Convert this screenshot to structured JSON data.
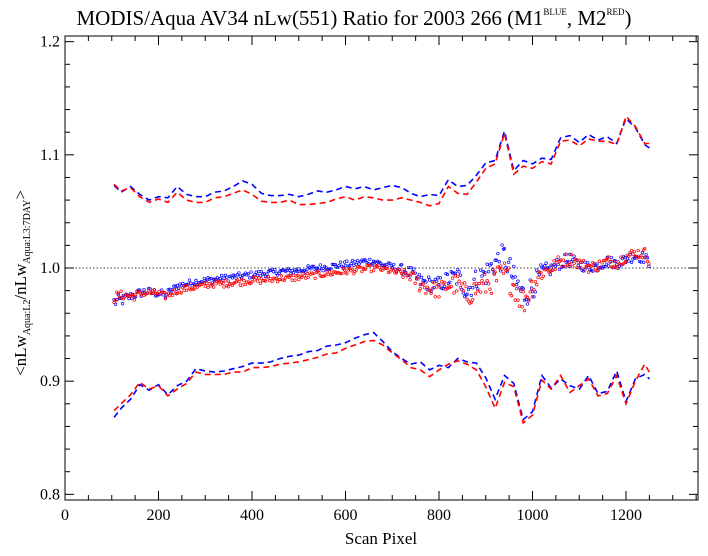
{
  "title": {
    "main": "MODIS/Aqua AV34 nLw(551) Ratio for 2003 266 (M1",
    "sup1": "BLUE",
    "mid": ", M2",
    "sup2": "RED",
    "end": ")"
  },
  "chart_data": {
    "type": "scatter",
    "xlabel": "Scan Pixel",
    "ylabel": {
      "p1": "<nLw",
      "s1": "Aqua:L2",
      "p2": "/nLw",
      "s2": "Aqua:L3:7DAY",
      "p3": ">"
    },
    "xlim": [
      0,
      1354
    ],
    "ylim": [
      0.795,
      1.205
    ],
    "x_ticks": [
      0,
      200,
      400,
      600,
      800,
      1000,
      1200
    ],
    "x_tick_labels": [
      "0",
      "200",
      "400",
      "600",
      "800",
      "1000",
      "1200"
    ],
    "y_ticks": [
      0.8,
      0.9,
      1.0,
      1.1,
      1.2
    ],
    "y_tick_labels": [
      "0.8",
      "0.9",
      "1.0",
      "1.1",
      "1.2"
    ],
    "reference_line": 1.0,
    "colors": {
      "m1": "#0000ff",
      "m2": "#ff0000"
    },
    "series": [
      {
        "kind": "upper-bound",
        "color": "#0000ff",
        "x": [
          105,
          120,
          140,
          160,
          180,
          200,
          220,
          240,
          260,
          280,
          300,
          320,
          340,
          360,
          380,
          400,
          420,
          440,
          460,
          480,
          500,
          520,
          540,
          560,
          580,
          600,
          620,
          640,
          660,
          680,
          700,
          720,
          740,
          760,
          780,
          800,
          820,
          840,
          860,
          880,
          900,
          920,
          940,
          960,
          980,
          1000,
          1020,
          1040,
          1060,
          1080,
          1100,
          1120,
          1140,
          1160,
          1180,
          1200,
          1220,
          1240,
          1250
        ],
        "y": [
          1.073,
          1.067,
          1.072,
          1.065,
          1.06,
          1.063,
          1.062,
          1.072,
          1.065,
          1.063,
          1.063,
          1.067,
          1.068,
          1.072,
          1.077,
          1.074,
          1.066,
          1.064,
          1.064,
          1.065,
          1.063,
          1.065,
          1.068,
          1.067,
          1.069,
          1.072,
          1.07,
          1.072,
          1.069,
          1.071,
          1.073,
          1.071,
          1.066,
          1.063,
          1.065,
          1.064,
          1.078,
          1.072,
          1.073,
          1.082,
          1.093,
          1.095,
          1.121,
          1.086,
          1.095,
          1.092,
          1.097,
          1.096,
          1.115,
          1.117,
          1.111,
          1.118,
          1.113,
          1.116,
          1.11,
          1.132,
          1.124,
          1.109,
          1.106
        ]
      },
      {
        "kind": "upper-bound",
        "color": "#ff0000",
        "x": [
          105,
          120,
          140,
          160,
          180,
          200,
          220,
          240,
          260,
          280,
          300,
          320,
          340,
          360,
          380,
          400,
          420,
          440,
          460,
          480,
          500,
          520,
          540,
          560,
          580,
          600,
          620,
          640,
          660,
          680,
          700,
          720,
          740,
          760,
          780,
          800,
          820,
          840,
          860,
          880,
          900,
          920,
          940,
          960,
          980,
          1000,
          1020,
          1040,
          1060,
          1080,
          1100,
          1120,
          1140,
          1160,
          1180,
          1200,
          1220,
          1240,
          1250
        ],
        "y": [
          1.074,
          1.068,
          1.071,
          1.063,
          1.058,
          1.061,
          1.058,
          1.067,
          1.06,
          1.058,
          1.058,
          1.062,
          1.063,
          1.066,
          1.069,
          1.065,
          1.059,
          1.058,
          1.058,
          1.06,
          1.056,
          1.056,
          1.057,
          1.058,
          1.061,
          1.063,
          1.06,
          1.063,
          1.062,
          1.06,
          1.06,
          1.062,
          1.06,
          1.058,
          1.055,
          1.057,
          1.072,
          1.066,
          1.065,
          1.076,
          1.088,
          1.092,
          1.119,
          1.083,
          1.09,
          1.088,
          1.094,
          1.092,
          1.112,
          1.113,
          1.108,
          1.114,
          1.112,
          1.112,
          1.109,
          1.134,
          1.125,
          1.11,
          1.11
        ]
      },
      {
        "kind": "lower-bound",
        "color": "#0000ff",
        "x": [
          105,
          120,
          140,
          160,
          180,
          200,
          220,
          240,
          260,
          280,
          300,
          320,
          340,
          360,
          380,
          400,
          420,
          440,
          460,
          480,
          500,
          520,
          540,
          560,
          580,
          600,
          620,
          640,
          660,
          680,
          700,
          720,
          740,
          760,
          780,
          800,
          820,
          840,
          860,
          880,
          900,
          920,
          940,
          960,
          980,
          1000,
          1020,
          1040,
          1060,
          1080,
          1100,
          1120,
          1140,
          1160,
          1180,
          1200,
          1220,
          1240,
          1250
        ],
        "y": [
          0.868,
          0.876,
          0.884,
          0.897,
          0.892,
          0.897,
          0.888,
          0.896,
          0.9,
          0.911,
          0.909,
          0.908,
          0.909,
          0.911,
          0.913,
          0.916,
          0.916,
          0.917,
          0.92,
          0.922,
          0.923,
          0.926,
          0.927,
          0.931,
          0.932,
          0.934,
          0.938,
          0.941,
          0.943,
          0.935,
          0.926,
          0.92,
          0.915,
          0.917,
          0.91,
          0.914,
          0.912,
          0.92,
          0.917,
          0.916,
          0.903,
          0.884,
          0.905,
          0.898,
          0.866,
          0.873,
          0.905,
          0.894,
          0.902,
          0.896,
          0.893,
          0.905,
          0.889,
          0.891,
          0.909,
          0.882,
          0.902,
          0.906,
          0.902
        ]
      },
      {
        "kind": "lower-bound",
        "color": "#ff0000",
        "x": [
          105,
          120,
          140,
          160,
          180,
          200,
          220,
          240,
          260,
          280,
          300,
          320,
          340,
          360,
          380,
          400,
          420,
          440,
          460,
          480,
          500,
          520,
          540,
          560,
          580,
          600,
          620,
          640,
          660,
          680,
          700,
          720,
          740,
          760,
          780,
          800,
          820,
          840,
          860,
          880,
          900,
          920,
          940,
          960,
          980,
          1000,
          1020,
          1040,
          1060,
          1080,
          1100,
          1120,
          1140,
          1160,
          1180,
          1200,
          1220,
          1240,
          1250
        ],
        "y": [
          0.874,
          0.88,
          0.888,
          0.899,
          0.893,
          0.896,
          0.887,
          0.893,
          0.898,
          0.908,
          0.906,
          0.906,
          0.906,
          0.908,
          0.908,
          0.912,
          0.912,
          0.913,
          0.915,
          0.916,
          0.917,
          0.919,
          0.921,
          0.924,
          0.925,
          0.929,
          0.932,
          0.935,
          0.936,
          0.932,
          0.925,
          0.919,
          0.912,
          0.91,
          0.904,
          0.91,
          0.915,
          0.918,
          0.915,
          0.91,
          0.895,
          0.876,
          0.899,
          0.895,
          0.863,
          0.87,
          0.901,
          0.893,
          0.905,
          0.89,
          0.896,
          0.902,
          0.887,
          0.889,
          0.905,
          0.88,
          0.9,
          0.915,
          0.908
        ]
      },
      {
        "kind": "ratio-points",
        "color": "#0000ff",
        "x": [
          105,
          125,
          145,
          170,
          195,
          215,
          240,
          260,
          280,
          300,
          320,
          340,
          360,
          380,
          400,
          420,
          440,
          460,
          480,
          500,
          520,
          540,
          560,
          580,
          600,
          620,
          640,
          660,
          680,
          700,
          720,
          740,
          760,
          780,
          800,
          820,
          840,
          860,
          880,
          900,
          920,
          940,
          960,
          980,
          1000,
          1020,
          1040,
          1060,
          1080,
          1100,
          1120,
          1140,
          1160,
          1180,
          1200,
          1220,
          1240,
          1250
        ],
        "y": [
          0.97,
          0.972,
          0.976,
          0.979,
          0.978,
          0.976,
          0.984,
          0.986,
          0.988,
          0.989,
          0.99,
          0.991,
          0.992,
          0.993,
          0.994,
          0.995,
          0.996,
          0.997,
          0.997,
          0.998,
          0.999,
          1.0,
          1.001,
          1.002,
          1.003,
          1.004,
          1.006,
          1.006,
          1.003,
          1.001,
          0.999,
          0.995,
          0.988,
          0.986,
          0.985,
          0.99,
          0.992,
          0.98,
          0.99,
          0.995,
          1.005,
          1.01,
          0.99,
          0.976,
          0.983,
          0.996,
          0.999,
          1.005,
          1.007,
          1.003,
          1.001,
          1.002,
          1.006,
          1.004,
          1.008,
          1.011,
          1.009,
          1.004
        ],
        "spread": [
          0.006,
          0.005,
          0.004,
          0.004,
          0.004,
          0.004,
          0.003,
          0.003,
          0.003,
          0.003,
          0.003,
          0.003,
          0.003,
          0.003,
          0.003,
          0.003,
          0.003,
          0.003,
          0.003,
          0.003,
          0.003,
          0.003,
          0.003,
          0.003,
          0.003,
          0.003,
          0.003,
          0.003,
          0.003,
          0.003,
          0.004,
          0.006,
          0.007,
          0.007,
          0.007,
          0.008,
          0.01,
          0.01,
          0.01,
          0.011,
          0.011,
          0.012,
          0.012,
          0.013,
          0.011,
          0.008,
          0.006,
          0.006,
          0.006,
          0.005,
          0.005,
          0.005,
          0.005,
          0.005,
          0.005,
          0.005,
          0.005,
          0.005
        ]
      },
      {
        "kind": "ratio-points",
        "color": "#ff0000",
        "x": [
          105,
          125,
          145,
          170,
          195,
          215,
          240,
          260,
          280,
          300,
          320,
          340,
          360,
          380,
          400,
          420,
          440,
          460,
          480,
          500,
          520,
          540,
          560,
          580,
          600,
          620,
          640,
          660,
          680,
          700,
          720,
          740,
          760,
          780,
          800,
          820,
          840,
          860,
          880,
          900,
          920,
          940,
          960,
          980,
          1000,
          1020,
          1040,
          1060,
          1080,
          1100,
          1120,
          1140,
          1160,
          1180,
          1200,
          1220,
          1240,
          1250
        ],
        "y": [
          0.974,
          0.976,
          0.975,
          0.978,
          0.978,
          0.975,
          0.98,
          0.982,
          0.983,
          0.985,
          0.986,
          0.986,
          0.987,
          0.988,
          0.989,
          0.989,
          0.99,
          0.991,
          0.991,
          0.992,
          0.993,
          0.994,
          0.995,
          0.996,
          0.997,
          0.998,
          0.999,
          1.0,
          0.999,
          0.997,
          0.995,
          0.993,
          0.985,
          0.982,
          0.98,
          0.985,
          0.985,
          0.975,
          0.982,
          0.985,
          0.99,
          0.995,
          0.985,
          0.97,
          0.985,
          0.996,
          1.0,
          1.006,
          1.008,
          1.004,
          1.001,
          1.002,
          1.006,
          1.005,
          1.01,
          1.013,
          1.013,
          1.008
        ],
        "spread": [
          0.005,
          0.004,
          0.004,
          0.003,
          0.003,
          0.003,
          0.003,
          0.003,
          0.003,
          0.003,
          0.003,
          0.003,
          0.003,
          0.003,
          0.003,
          0.003,
          0.003,
          0.003,
          0.003,
          0.003,
          0.003,
          0.003,
          0.003,
          0.003,
          0.003,
          0.003,
          0.003,
          0.003,
          0.003,
          0.003,
          0.004,
          0.005,
          0.007,
          0.007,
          0.007,
          0.008,
          0.01,
          0.01,
          0.01,
          0.011,
          0.011,
          0.012,
          0.012,
          0.013,
          0.011,
          0.008,
          0.006,
          0.006,
          0.006,
          0.005,
          0.005,
          0.005,
          0.005,
          0.005,
          0.005,
          0.005,
          0.005,
          0.005
        ]
      }
    ]
  }
}
